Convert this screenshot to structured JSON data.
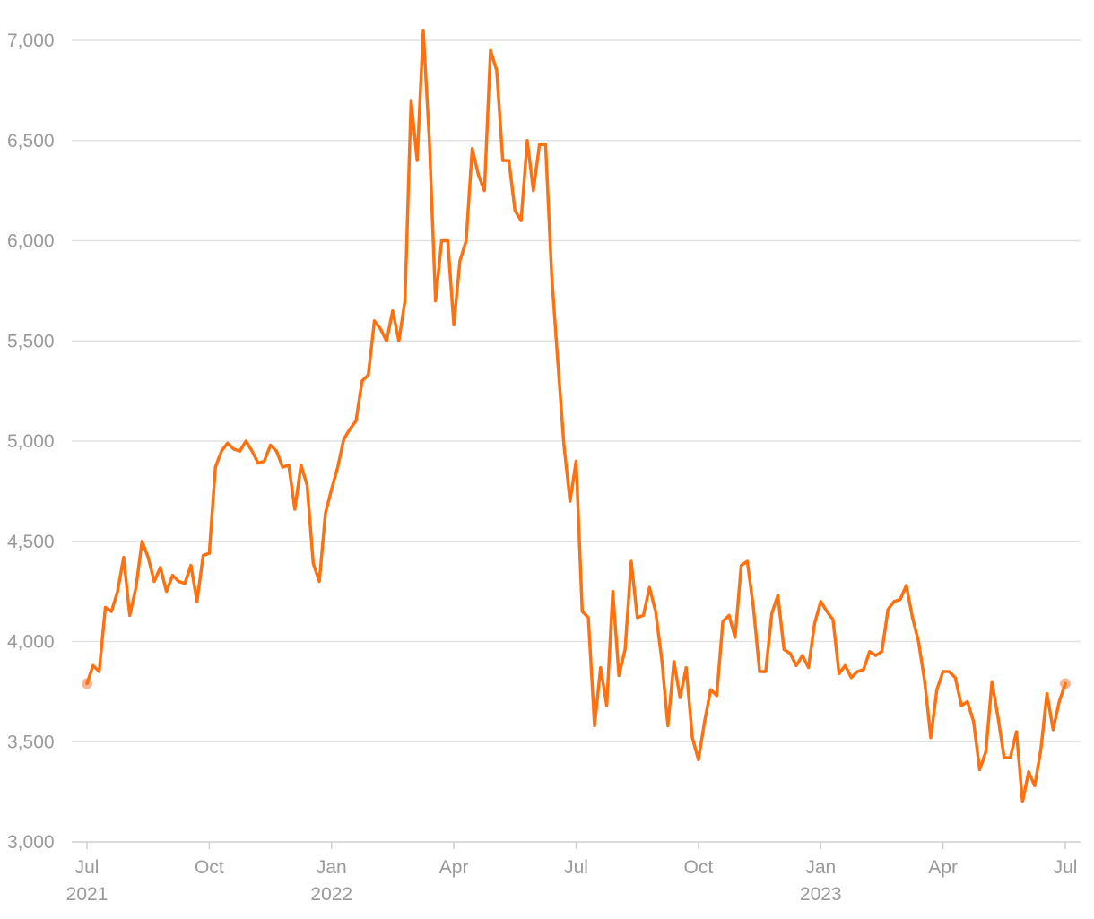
{
  "chart_data": {
    "type": "line",
    "color": "#ff7110",
    "endpoint_color": "#f8b595",
    "grid": true,
    "ylim": [
      3000,
      7200
    ],
    "yticks": [
      {
        "value": 3000,
        "label": "3,000"
      },
      {
        "value": 3500,
        "label": "3,500"
      },
      {
        "value": 4000,
        "label": "4,000"
      },
      {
        "value": 4500,
        "label": "4,500"
      },
      {
        "value": 5000,
        "label": "5,000"
      },
      {
        "value": 5500,
        "label": "5,500"
      },
      {
        "value": 6000,
        "label": "6,000"
      },
      {
        "value": 6500,
        "label": "6,500"
      },
      {
        "value": 7000,
        "label": "7,000"
      }
    ],
    "xlim": [
      0,
      160
    ],
    "xticks": [
      {
        "value": 0,
        "label": "Jul"
      },
      {
        "value": 20,
        "label": "Oct"
      },
      {
        "value": 40,
        "label": "Jan"
      },
      {
        "value": 60,
        "label": "Apr"
      },
      {
        "value": 80,
        "label": "Jul"
      },
      {
        "value": 100,
        "label": "Oct"
      },
      {
        "value": 120,
        "label": "Jan"
      },
      {
        "value": 140,
        "label": "Apr"
      },
      {
        "value": 160,
        "label": "Jul"
      }
    ],
    "year_labels": [
      {
        "value": 0,
        "label": "2021"
      },
      {
        "value": 40,
        "label": "2022"
      },
      {
        "value": 120,
        "label": "2023"
      }
    ],
    "values": [
      3790,
      3880,
      3850,
      4170,
      4150,
      4250,
      4420,
      4130,
      4270,
      4500,
      4420,
      4300,
      4370,
      4250,
      4330,
      4300,
      4290,
      4380,
      4200,
      4430,
      4440,
      4870,
      4950,
      4990,
      4960,
      4950,
      5000,
      4950,
      4890,
      4900,
      4980,
      4950,
      4870,
      4880,
      4660,
      4880,
      4780,
      4390,
      4300,
      4640,
      4760,
      4870,
      5010,
      5060,
      5100,
      5300,
      5330,
      5600,
      5560,
      5500,
      5650,
      5500,
      5700,
      6700,
      6400,
      7050,
      6500,
      5700,
      6000,
      6000,
      5580,
      5900,
      6000,
      6460,
      6330,
      6250,
      6950,
      6850,
      6400,
      6400,
      6150,
      6100,
      6500,
      6250,
      6480,
      6480,
      5830,
      5400,
      4980,
      4700,
      4900,
      4150,
      4120,
      3580,
      3870,
      3680,
      4250,
      3830,
      3960,
      4400,
      4120,
      4130,
      4270,
      4150,
      3910,
      3580,
      3900,
      3720,
      3870,
      3520,
      3410,
      3600,
      3760,
      3730,
      4100,
      4130,
      4020,
      4380,
      4400,
      4170,
      3850,
      3850,
      4140,
      4230,
      3960,
      3940,
      3880,
      3930,
      3870,
      4090,
      4200,
      4150,
      4110,
      3840,
      3880,
      3820,
      3850,
      3860,
      3950,
      3930,
      3950,
      4160,
      4200,
      4210,
      4280,
      4120,
      4000,
      3800,
      3520,
      3760,
      3850,
      3850,
      3820,
      3680,
      3700,
      3600,
      3360,
      3450,
      3800,
      3620,
      3420,
      3420,
      3550,
      3200,
      3350,
      3280,
      3460,
      3740,
      3560,
      3700,
      3790
    ]
  }
}
